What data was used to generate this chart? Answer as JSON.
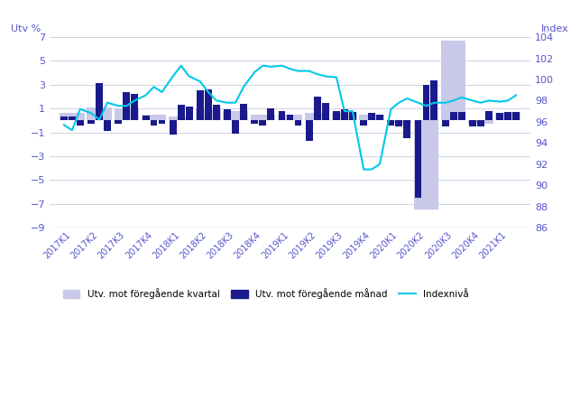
{
  "ylabel_left": "Utv %",
  "ylabel_right": "Index",
  "ylim_left": [
    -9,
    7
  ],
  "ylim_right": [
    86,
    104
  ],
  "yticks_left": [
    -9,
    -7,
    -5,
    -3,
    -1,
    1,
    3,
    5,
    7
  ],
  "yticks_right": [
    86,
    88,
    90,
    92,
    94,
    96,
    98,
    100,
    102,
    104
  ],
  "quarters": [
    "2017K1",
    "2017K2",
    "2017K3",
    "2017K4",
    "2018K1",
    "2018K2",
    "2018K3",
    "2018K4",
    "2019K1",
    "2019K2",
    "2019K3",
    "2019K4",
    "2020K1",
    "2020K2",
    "2020K3",
    "2020K4",
    "2021K1"
  ],
  "quarter_values": [
    0.6,
    1.1,
    1.0,
    0.5,
    0.3,
    0.9,
    0.8,
    0.5,
    0.5,
    0.6,
    0.6,
    0.5,
    -0.3,
    -7.5,
    6.7,
    -0.3,
    0.6
  ],
  "monthly_values_per_quarter": [
    [
      0.3,
      0.3,
      -0.4
    ],
    [
      -0.3,
      3.1,
      -0.9
    ],
    [
      -0.3,
      2.4,
      2.2
    ],
    [
      0.4,
      -0.4,
      -0.3
    ],
    [
      -1.2,
      1.3,
      1.2
    ],
    [
      2.5,
      2.6,
      1.3
    ],
    [
      0.9,
      -1.1,
      1.4
    ],
    [
      -0.3,
      -0.4,
      1.0
    ],
    [
      0.8,
      0.5,
      -0.4
    ],
    [
      -1.7,
      2.0,
      1.5
    ],
    [
      0.8,
      0.9,
      0.7
    ],
    [
      -0.4,
      0.6,
      0.5
    ],
    [
      -0.4,
      -0.5,
      -1.5
    ],
    [
      -6.5,
      3.0,
      3.4
    ],
    [
      -0.5,
      0.7,
      0.7
    ],
    [
      -0.5,
      -0.5,
      0.8
    ],
    [
      0.6,
      0.7,
      0.7
    ]
  ],
  "index_values": [
    95.7,
    95.2,
    97.2,
    96.8,
    96.2,
    97.8,
    97.5,
    97.5,
    98.0,
    98.5,
    99.3,
    98.8,
    100.3,
    101.3,
    100.3,
    99.8,
    98.8,
    98.0,
    97.8,
    97.8,
    99.3,
    100.7,
    101.3,
    101.2,
    101.3,
    101.0,
    100.8,
    100.8,
    100.5,
    100.3,
    100.2,
    97.0,
    97.0,
    91.5,
    91.5,
    92.0,
    97.2,
    97.8,
    98.2,
    97.8,
    97.5,
    97.8,
    97.8,
    98.0,
    98.3,
    98.0,
    97.8,
    98.0,
    97.9,
    98.0,
    98.5
  ],
  "quarter_bar_color": "#c8c8e8",
  "monthly_bar_color": "#1a1a8c",
  "line_color": "#00c8e8",
  "axis_color": "#5555cc",
  "grid_color": "#d0d0e8",
  "background_color": "#ffffff"
}
